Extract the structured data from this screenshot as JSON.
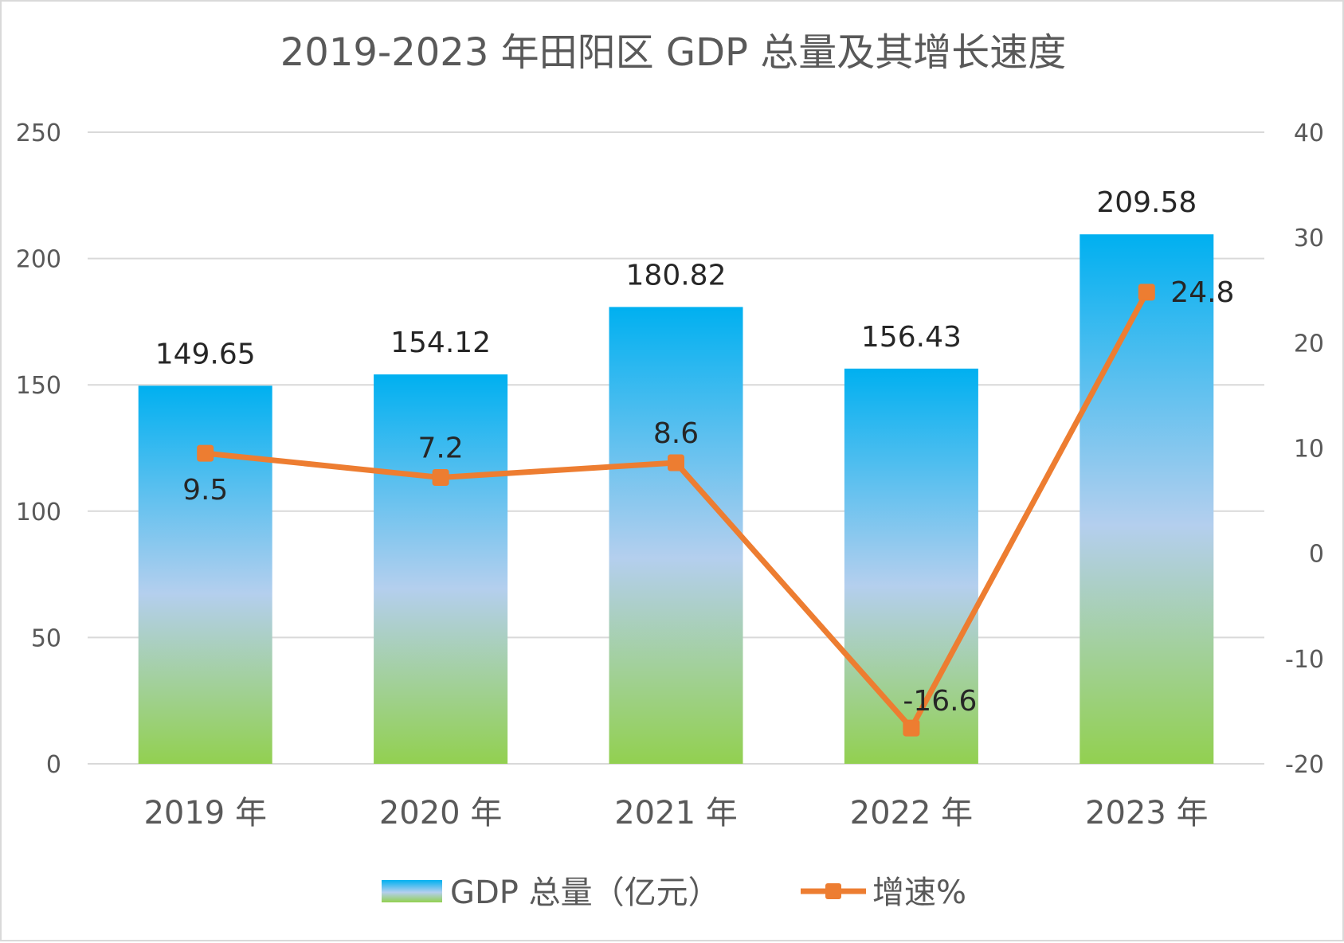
{
  "chart_data": {
    "type": "bar",
    "title": "2019-2023 年田阳区 GDP 总量及其增长速度",
    "categories": [
      "2019 年",
      "2020 年",
      "2021 年",
      "2022 年",
      "2023 年"
    ],
    "series": [
      {
        "name": "GDP 总量（亿元）",
        "type": "bar",
        "axis": "left",
        "values": [
          149.65,
          154.12,
          180.82,
          156.43,
          209.58
        ],
        "labels": [
          "149.65",
          "154.12",
          "180.82",
          "156.43",
          "209.58"
        ],
        "color_top": "#00b0f0",
        "color_mid": "#b4cfee",
        "color_bottom": "#92d050"
      },
      {
        "name": "增速%",
        "type": "line",
        "axis": "right",
        "values": [
          9.5,
          7.2,
          8.6,
          -16.6,
          24.8
        ],
        "labels": [
          "9.5",
          "7.2",
          "8.6",
          "-16.6",
          "24.8"
        ],
        "color": "#ed7d31"
      }
    ],
    "y_left": {
      "min": 0,
      "max": 250,
      "ticks": [
        "0",
        "50",
        "100",
        "150",
        "200",
        "250"
      ]
    },
    "y_right": {
      "min": -20,
      "max": 40,
      "ticks": [
        "-20",
        "-10",
        "0",
        "10",
        "20",
        "30",
        "40"
      ]
    },
    "grid": true,
    "legend": "bottom",
    "gridline_color": "#d9d9d9"
  }
}
